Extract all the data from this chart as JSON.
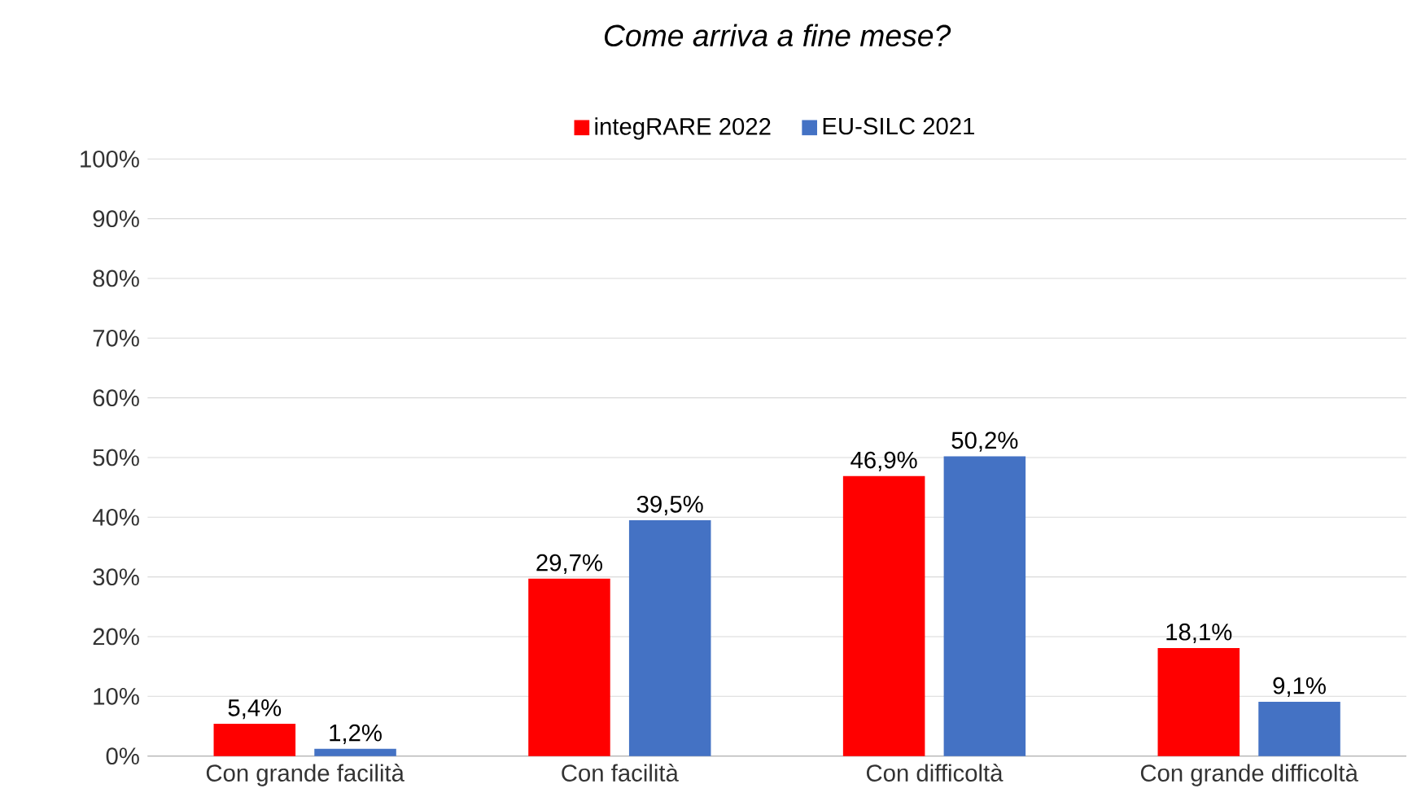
{
  "chart_data": {
    "type": "bar",
    "title": "*Come arriva a fine mese?*",
    "categories": [
      "Con grande facilità",
      "Con facilità",
      "Con difficoltà",
      "Con grande difficoltà"
    ],
    "series": [
      {
        "name": "integRARE 2022",
        "color": "#ff0000",
        "values": [
          5.4,
          29.7,
          46.9,
          18.1
        ],
        "value_labels": [
          "5,4%",
          "29,7%",
          "46,9%",
          "18,1%"
        ]
      },
      {
        "name": "EU-SILC 2021",
        "color": "#4472c4",
        "values": [
          1.2,
          39.5,
          50.2,
          9.1
        ],
        "value_labels": [
          "1,2%",
          "39,5%",
          "50,2%",
          "9,1%"
        ]
      }
    ],
    "ylim": [
      0,
      100
    ],
    "yticks": [
      {
        "value": 0,
        "label": "0%"
      },
      {
        "value": 10,
        "label": "10%"
      },
      {
        "value": 20,
        "label": "20%"
      },
      {
        "value": 30,
        "label": "30%"
      },
      {
        "value": 40,
        "label": "40%"
      },
      {
        "value": 50,
        "label": "50%"
      },
      {
        "value": 60,
        "label": "60%"
      },
      {
        "value": 70,
        "label": "70%"
      },
      {
        "value": 80,
        "label": "80%"
      },
      {
        "value": 90,
        "label": "90%"
      },
      {
        "value": 100,
        "label": "100%"
      }
    ],
    "grid": "y",
    "legend": "top"
  }
}
